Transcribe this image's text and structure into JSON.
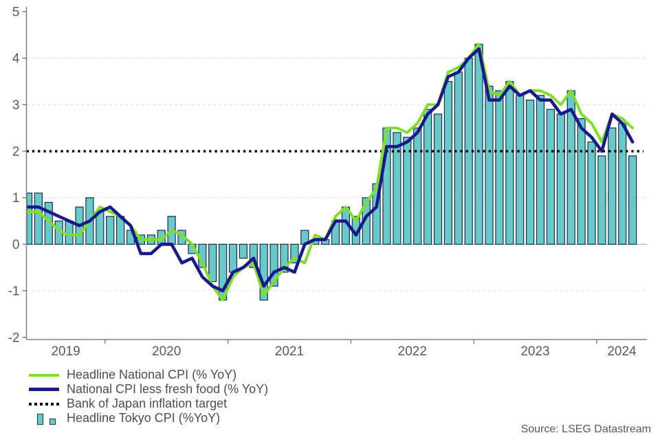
{
  "source": "Source: LSEG Datastream",
  "chart_data": {
    "type": "bar+line",
    "title": "",
    "xlabel": "",
    "ylabel": "",
    "ylim": [
      -2,
      5
    ],
    "y_ticks": [
      5,
      4,
      3,
      2,
      1,
      0,
      -1,
      -2
    ],
    "x_year_labels": [
      "2019",
      "2020",
      "2021",
      "2022",
      "2023",
      "2024"
    ],
    "grid": {
      "dashed_y": [
        4,
        3,
        1,
        -1
      ],
      "color": "#d9d9d9",
      "zero_line_color": "#a6a6a6"
    },
    "axis_color": "#7f7f7f",
    "tick_label_color": "#595959",
    "bar_border_color": "#142e4d",
    "boj_target_value": 2.0,
    "legend_position": "bottom-left",
    "months": [
      "2019-05",
      "2019-06",
      "2019-07",
      "2019-08",
      "2019-09",
      "2019-10",
      "2019-11",
      "2019-12",
      "2020-01",
      "2020-02",
      "2020-03",
      "2020-04",
      "2020-05",
      "2020-06",
      "2020-07",
      "2020-08",
      "2020-09",
      "2020-10",
      "2020-11",
      "2020-12",
      "2021-01",
      "2021-02",
      "2021-03",
      "2021-04",
      "2021-05",
      "2021-06",
      "2021-07",
      "2021-08",
      "2021-09",
      "2021-10",
      "2021-11",
      "2021-12",
      "2022-01",
      "2022-02",
      "2022-03",
      "2022-04",
      "2022-05",
      "2022-06",
      "2022-07",
      "2022-08",
      "2022-09",
      "2022-10",
      "2022-11",
      "2022-12",
      "2023-01",
      "2023-02",
      "2023-03",
      "2023-04",
      "2023-05",
      "2023-06",
      "2023-07",
      "2023-08",
      "2023-09",
      "2023-10",
      "2023-11",
      "2023-12",
      "2024-01",
      "2024-02",
      "2024-03",
      "2024-04"
    ],
    "series": [
      {
        "name": "Headline National CPI (% YoY)",
        "type": "line",
        "color": "#7fdf28",
        "values": [
          0.7,
          0.7,
          0.5,
          0.3,
          0.2,
          0.2,
          0.5,
          0.8,
          0.7,
          0.6,
          0.4,
          0.1,
          0.1,
          0.1,
          0.3,
          0.2,
          0.0,
          -0.4,
          -0.9,
          -1.2,
          -0.7,
          -0.5,
          -0.4,
          -1.1,
          -0.8,
          -0.5,
          -0.3,
          -0.4,
          0.2,
          0.1,
          0.6,
          0.8,
          0.5,
          0.9,
          1.2,
          2.5,
          2.5,
          2.4,
          2.6,
          3.0,
          3.0,
          3.7,
          3.8,
          4.0,
          4.3,
          3.3,
          3.2,
          3.5,
          3.2,
          3.3,
          3.3,
          3.2,
          3.0,
          3.3,
          2.8,
          2.6,
          2.2,
          2.8,
          2.7,
          2.5
        ]
      },
      {
        "name": "National CPI less fresh food (% YoY)",
        "type": "line",
        "color": "#19198c",
        "values": [
          0.8,
          0.8,
          0.7,
          0.6,
          0.5,
          0.4,
          0.5,
          0.7,
          0.8,
          0.6,
          0.4,
          -0.2,
          -0.2,
          0.0,
          0.0,
          -0.4,
          -0.3,
          -0.7,
          -0.9,
          -1.0,
          -0.6,
          -0.5,
          -0.3,
          -0.9,
          -0.6,
          -0.5,
          -0.6,
          0.0,
          0.1,
          0.1,
          0.5,
          0.5,
          0.2,
          0.6,
          0.8,
          2.1,
          2.1,
          2.2,
          2.4,
          2.8,
          3.0,
          3.6,
          3.7,
          4.0,
          4.2,
          3.1,
          3.1,
          3.4,
          3.2,
          3.3,
          3.1,
          3.1,
          2.8,
          2.9,
          2.5,
          2.3,
          2.0,
          2.8,
          2.6,
          2.2
        ]
      },
      {
        "name": "Bank of Japan inflation target",
        "type": "dotted-line",
        "color": "#000000",
        "value": 2.0
      },
      {
        "name": "Headline Tokyo CPI (%YoY)",
        "type": "bar",
        "color": "#68c9c8",
        "values": [
          1.1,
          1.1,
          0.9,
          0.5,
          0.5,
          0.8,
          1.0,
          0.7,
          0.6,
          0.6,
          0.3,
          0.2,
          0.2,
          0.3,
          0.6,
          0.3,
          -0.2,
          -0.5,
          -0.8,
          -1.2,
          -0.6,
          -0.3,
          -0.5,
          -1.2,
          -0.9,
          -0.6,
          -0.4,
          0.3,
          0.1,
          0.1,
          0.5,
          0.8,
          0.6,
          1.0,
          1.3,
          2.5,
          2.4,
          2.3,
          2.5,
          2.9,
          2.8,
          3.5,
          3.7,
          4.0,
          4.3,
          3.4,
          3.3,
          3.5,
          3.2,
          3.1,
          3.2,
          2.9,
          2.8,
          3.3,
          2.7,
          2.2,
          1.9,
          2.5,
          2.6,
          1.9
        ]
      }
    ]
  }
}
